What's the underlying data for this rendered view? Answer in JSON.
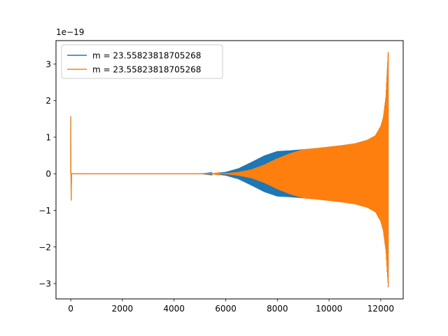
{
  "chart_data": {
    "type": "line",
    "title": "",
    "xlabel": "",
    "ylabel": "",
    "y_offset_label": "1e−19",
    "xlim": [
      -570,
      12870
    ],
    "ylim": [
      -3.42,
      3.64
    ],
    "y_scale_factor": 1e-19,
    "xticks": [
      0,
      2000,
      4000,
      6000,
      8000,
      10000,
      12000
    ],
    "xtick_labels": [
      "0",
      "2000",
      "4000",
      "6000",
      "8000",
      "10000",
      "12000"
    ],
    "yticks": [
      -3,
      -2,
      -1,
      0,
      1,
      2,
      3
    ],
    "ytick_labels": [
      "−3",
      "−2",
      "−1",
      "0",
      "1",
      "2",
      "3"
    ],
    "grid": false,
    "legend_position": "upper-left",
    "series": [
      {
        "name": "m = 23.55823818705268",
        "color": "#1f77b4",
        "envelope_x": [
          0,
          5000,
          5500,
          6000,
          6500,
          7000,
          7500,
          8000,
          8500,
          9000,
          9500,
          10000,
          10500,
          11000,
          11500,
          11800,
          12000,
          12100,
          12200,
          12250,
          12290
        ],
        "envelope_upper": [
          0,
          0,
          0.01,
          0.05,
          0.15,
          0.32,
          0.5,
          0.62,
          0.64,
          0.67,
          0.7,
          0.74,
          0.78,
          0.83,
          0.93,
          1.05,
          1.3,
          1.55,
          2.1,
          2.8,
          3.3
        ],
        "envelope_lower": [
          0,
          0,
          -0.01,
          -0.05,
          -0.15,
          -0.32,
          -0.5,
          -0.62,
          -0.64,
          -0.67,
          -0.7,
          -0.74,
          -0.78,
          -0.83,
          -0.93,
          -1.05,
          -1.3,
          -1.55,
          -2.1,
          -2.7,
          -3.1
        ],
        "spike": {
          "x": 0,
          "max": 1.57,
          "min": -0.73
        }
      },
      {
        "name": "m = 23.55823818705268",
        "color": "#ff7f0e",
        "envelope_x": [
          0,
          5000,
          5500,
          6000,
          6500,
          7000,
          7500,
          8000,
          8500,
          9000,
          9500,
          10000,
          10500,
          11000,
          11500,
          11800,
          12000,
          12100,
          12200,
          12250,
          12290
        ],
        "envelope_upper": [
          0,
          0,
          0.003,
          0.015,
          0.05,
          0.12,
          0.25,
          0.42,
          0.56,
          0.67,
          0.7,
          0.74,
          0.78,
          0.83,
          0.93,
          1.05,
          1.3,
          1.55,
          2.1,
          2.8,
          3.33
        ],
        "envelope_lower": [
          0,
          0,
          -0.003,
          -0.015,
          -0.05,
          -0.12,
          -0.25,
          -0.42,
          -0.56,
          -0.67,
          -0.7,
          -0.74,
          -0.78,
          -0.83,
          -0.93,
          -1.05,
          -1.3,
          -1.55,
          -2.1,
          -2.7,
          -3.08
        ],
        "spike": {
          "x": 0,
          "max": 1.57,
          "min": -0.73
        }
      }
    ]
  }
}
